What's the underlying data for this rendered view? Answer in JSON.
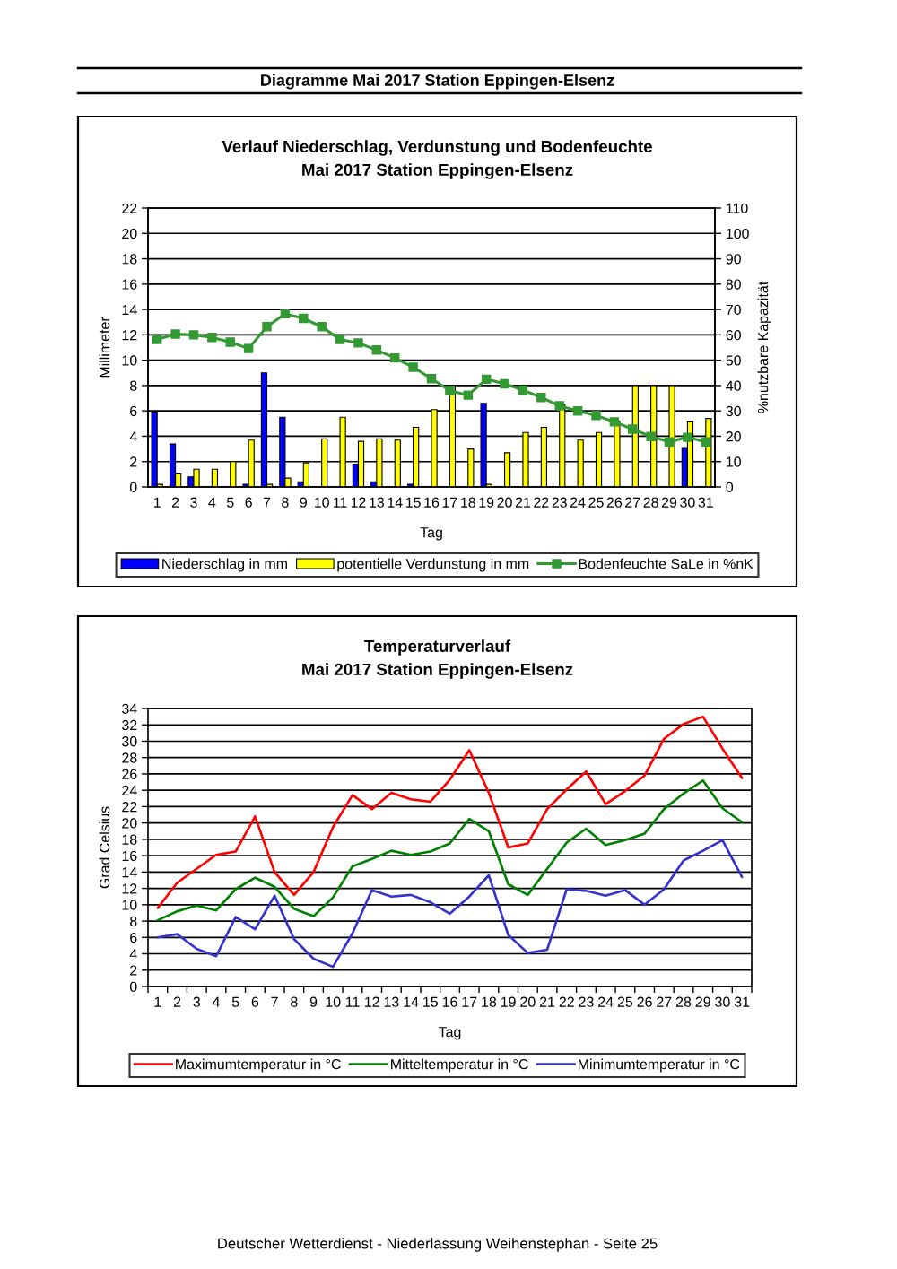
{
  "chart_data": [
    {
      "type": "bar",
      "title": "Verlauf Niederschlag, Verdunstung und Bodenfeuchte",
      "subtitle": "Mai 2017 Station Eppingen-Elsenz",
      "xlabel": "Tag",
      "ylabel": "Millimeter",
      "y2label": "%nutzbare Kapazität",
      "annotations": [
        "Diagramme Mai 2017 Station Eppingen-Elsenz"
      ],
      "categories": [
        "1",
        "2",
        "3",
        "4",
        "5",
        "6",
        "7",
        "8",
        "9",
        "10",
        "11",
        "12",
        "13",
        "14",
        "15",
        "16",
        "17",
        "18",
        "19",
        "20",
        "21",
        "22",
        "23",
        "24",
        "25",
        "26",
        "27",
        "28",
        "29",
        "30",
        "31"
      ],
      "series": [
        {
          "name": "Niederschlag in mm",
          "color": "#0000ff",
          "values": [
            5.9,
            3.4,
            0.8,
            null,
            null,
            0.2,
            9.0,
            5.5,
            0.4,
            null,
            null,
            1.8,
            0.4,
            null,
            0.2,
            null,
            null,
            null,
            6.6,
            null,
            null,
            null,
            null,
            null,
            null,
            null,
            null,
            null,
            null,
            3.1,
            null
          ]
        },
        {
          "name": "potentielle Verdunstung in mm",
          "color": "#ffff00",
          "values": [
            0.2,
            1.1,
            1.4,
            1.4,
            2.0,
            3.7,
            0.2,
            0.7,
            1.9,
            3.8,
            5.5,
            3.6,
            3.8,
            3.7,
            4.7,
            6.1,
            8.0,
            3.0,
            0.2,
            2.7,
            4.3,
            4.7,
            6.5,
            3.7,
            4.3,
            5.2,
            8.0,
            8.0,
            8.0,
            5.2,
            5.4
          ]
        },
        {
          "name": "Bodenfeuchte SaLe in %nK",
          "type": "line",
          "axis": "y2",
          "marker": "square",
          "color": "#339933",
          "values": [
            58.2,
            60.3,
            60.0,
            59.0,
            57.1,
            54.6,
            63.2,
            68.3,
            66.5,
            63.2,
            58.2,
            56.8,
            54.0,
            50.9,
            47.2,
            42.7,
            38.0,
            36.2,
            42.5,
            40.7,
            38.2,
            35.3,
            32.0,
            30.0,
            28.2,
            25.7,
            22.8,
            19.9,
            17.8,
            19.6,
            17.8
          ]
        }
      ],
      "ylim": [
        0,
        22
      ],
      "yticks": [
        0,
        2,
        4,
        6,
        8,
        10,
        12,
        14,
        16,
        18,
        20,
        22
      ],
      "y2lim": [
        0,
        110
      ],
      "y2ticks": [
        0,
        10,
        20,
        30,
        40,
        50,
        60,
        70,
        80,
        90,
        100,
        110
      ],
      "grid": "y",
      "legend": "bottom"
    },
    {
      "type": "line",
      "title": "Temperaturverlauf",
      "subtitle": "Mai 2017 Station Eppingen-Elsenz",
      "xlabel": "Tag",
      "ylabel": "Grad Celsius",
      "annotations": [
        "Deutscher Wetterdienst - Niederlassung Weihenstephan - Seite 25"
      ],
      "categories": [
        "1",
        "2",
        "3",
        "4",
        "5",
        "6",
        "7",
        "8",
        "9",
        "10",
        "11",
        "12",
        "13",
        "14",
        "15",
        "16",
        "17",
        "18",
        "19",
        "20",
        "21",
        "22",
        "23",
        "24",
        "25",
        "26",
        "27",
        "28",
        "29",
        "30",
        "31"
      ],
      "series": [
        {
          "name": "Maximumtemperatur in °C",
          "color": "#ff0000",
          "values": [
            9.6,
            12.7,
            14.4,
            16.1,
            16.5,
            20.8,
            14.0,
            11.2,
            14.0,
            19.5,
            23.4,
            21.7,
            23.7,
            22.9,
            22.6,
            25.3,
            28.9,
            23.7,
            17.0,
            17.5,
            21.7,
            24.1,
            26.3,
            22.3,
            23.9,
            25.8,
            30.3,
            32.1,
            33.0,
            29.1,
            25.5
          ]
        },
        {
          "name": "Mitteltemperatur in °C",
          "color": "#008000",
          "values": [
            8.1,
            9.2,
            9.9,
            9.3,
            11.9,
            13.3,
            12.2,
            9.5,
            8.6,
            10.9,
            14.7,
            15.6,
            16.6,
            16.1,
            16.5,
            17.5,
            20.5,
            19.0,
            12.5,
            11.2,
            14.4,
            17.6,
            19.3,
            17.3,
            17.9,
            18.7,
            21.7,
            23.6,
            25.2,
            21.8,
            20.1
          ]
        },
        {
          "name": "Minimumtemperatur in °C",
          "color": "#3333cc",
          "values": [
            6.0,
            6.4,
            4.6,
            3.7,
            8.5,
            7.0,
            11.1,
            5.8,
            3.4,
            2.4,
            6.5,
            11.8,
            11.0,
            11.2,
            10.3,
            8.9,
            11.0,
            13.6,
            6.3,
            4.1,
            4.5,
            11.9,
            11.7,
            11.1,
            11.8,
            10.0,
            11.9,
            15.4,
            16.6,
            17.9,
            13.4
          ]
        }
      ],
      "ylim": [
        0,
        34
      ],
      "yticks": [
        0,
        2,
        4,
        6,
        8,
        10,
        12,
        14,
        16,
        18,
        20,
        22,
        24,
        26,
        28,
        30,
        32,
        34
      ],
      "grid": "y",
      "legend": "bottom"
    }
  ]
}
